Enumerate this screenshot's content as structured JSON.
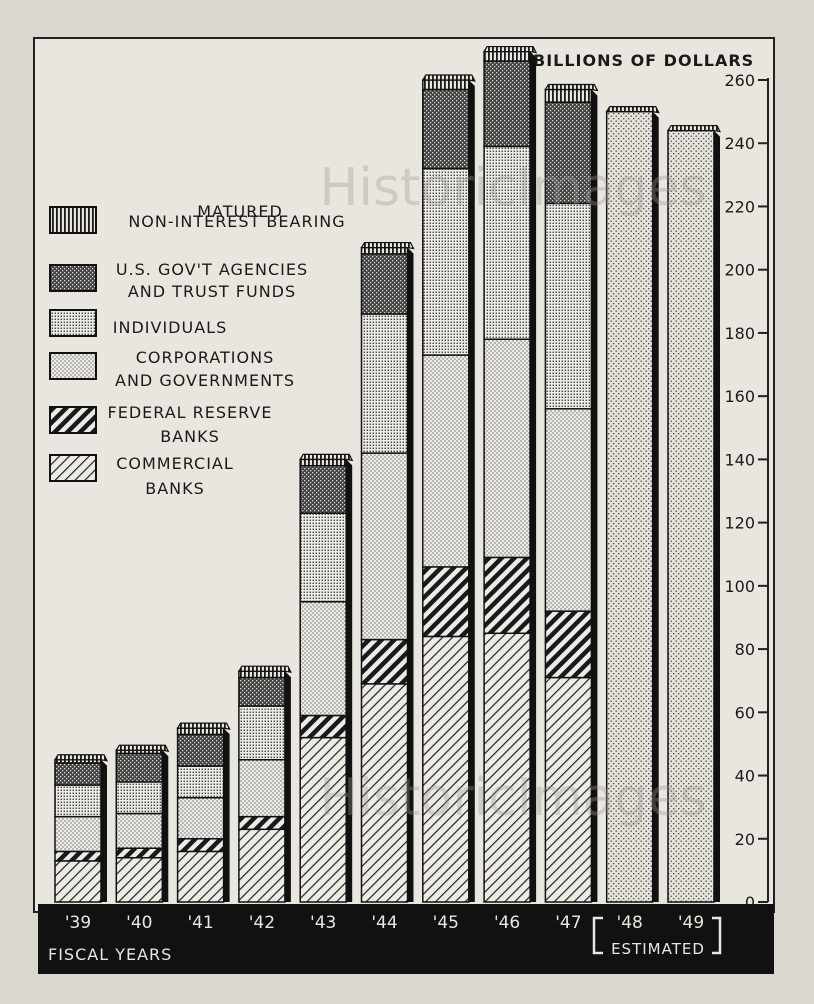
{
  "chart_data": {
    "type": "bar",
    "stacked": true,
    "ylabel": "BILLIONS OF DOLLARS",
    "xlabel": "FISCAL YEARS",
    "estimated_label": "ESTIMATED",
    "ylim": [
      0,
      260
    ],
    "yticks": [
      0,
      20,
      40,
      60,
      80,
      100,
      120,
      140,
      160,
      180,
      200,
      220,
      240,
      260
    ],
    "legend_position": "left",
    "categories": [
      "'39",
      "'40",
      "'41",
      "'42",
      "'43",
      "'44",
      "'45",
      "'46",
      "'47",
      "'48",
      "'49"
    ],
    "estimated_categories": [
      "'48",
      "'49"
    ],
    "legend": [
      {
        "key": "matured",
        "label": "MATURED\nNON-INTEREST BEARING",
        "pattern": "vlines"
      },
      {
        "key": "agencies",
        "label": "U.S. GOV'T AGENCIES\nAND TRUST FUNDS",
        "pattern": "crosshatch"
      },
      {
        "key": "individuals",
        "label": "INDIVIDUALS",
        "pattern": "densedots"
      },
      {
        "key": "corporations",
        "label": "CORPORATIONS\nAND GOVERNMENTS",
        "pattern": "lightdots"
      },
      {
        "key": "federal_reserve",
        "label": "FEDERAL RESERVE\nBANKS",
        "pattern": "heavydiag"
      },
      {
        "key": "commercial",
        "label": "COMMERCIAL\nBANKS",
        "pattern": "lightdiag"
      }
    ],
    "series": [
      {
        "key": "commercial",
        "values": [
          13,
          14,
          16,
          23,
          52,
          69,
          84,
          85,
          71,
          null,
          null
        ]
      },
      {
        "key": "federal_reserve",
        "values": [
          3,
          3,
          4,
          4,
          7,
          14,
          22,
          24,
          21,
          null,
          null
        ]
      },
      {
        "key": "corporations",
        "values": [
          11,
          11,
          13,
          18,
          36,
          59,
          67,
          69,
          64,
          null,
          null
        ]
      },
      {
        "key": "individuals",
        "values": [
          10,
          10,
          10,
          17,
          28,
          44,
          59,
          61,
          65,
          null,
          null
        ]
      },
      {
        "key": "agencies",
        "values": [
          7,
          9,
          10,
          9,
          15,
          19,
          25,
          27,
          32,
          null,
          null
        ]
      },
      {
        "key": "matured",
        "values": [
          1,
          1,
          2,
          2,
          2,
          2,
          3,
          3,
          4,
          null,
          null
        ]
      }
    ],
    "estimated_totals": [
      null,
      null,
      null,
      null,
      null,
      null,
      null,
      null,
      null,
      250,
      244
    ]
  },
  "watermark": "HistoricImages"
}
